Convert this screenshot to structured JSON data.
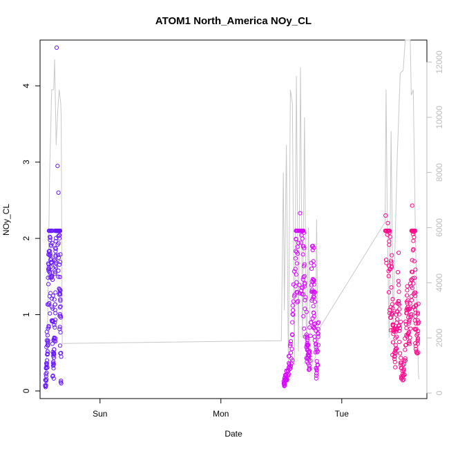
{
  "chart_data": {
    "type": "scatter",
    "title": "ATOM1 North_America NOy_CL",
    "xlabel": "Date",
    "ylabel": "NOy_CL",
    "x_ticks": [
      "Sun",
      "Mon",
      "Tue"
    ],
    "x_tick_hours": [
      24,
      48,
      72
    ],
    "xlim_hours": [
      12.1,
      88.9
    ],
    "ylim": [
      -0.1,
      4.6
    ],
    "y_ticks": [
      0,
      1,
      2,
      3,
      4
    ],
    "y2lim": [
      -200,
      12800
    ],
    "y2_ticks": [
      0,
      2000,
      4000,
      6000,
      8000,
      10000,
      12000
    ],
    "grid": false,
    "legend": "none",
    "colors": {
      "early": "#6a1aff",
      "middle": "#d60aff",
      "late": "#ff0a8c",
      "altitude_line": "#c8c8c8"
    },
    "series": [
      {
        "x_range_hours": [
          13.2,
          16.3
        ],
        "values_sample": [
          0.05,
          0.3,
          0.6,
          1.4,
          1.6,
          1.8,
          1.9,
          1.5,
          0.2,
          0.5,
          0.9,
          1.7,
          4.5,
          2.95,
          2.6,
          2.0,
          1.2,
          0.1
        ]
      },
      {
        "x_range_hours": [
          60.5,
          67.4
        ],
        "values_sample": [
          0.1,
          0.2,
          0.3,
          0.5,
          1.0,
          1.6,
          1.8,
          2.33,
          2.1,
          1.4,
          0.6,
          0.3,
          1.3,
          1.45,
          0.2,
          0.9
        ]
      },
      {
        "x_range_hours": [
          80.7,
          87.3
        ],
        "values_sample": [
          2.3,
          2.2,
          1.6,
          1.0,
          0.5,
          0.8,
          1.3,
          0.3,
          0.2,
          0.6,
          1.1,
          0.7,
          2.43,
          1.7,
          0.5,
          0.9
        ]
      }
    ],
    "altitude_line": [
      [
        13.2,
        300
      ],
      [
        13.6,
        2500
      ],
      [
        14.0,
        8000
      ],
      [
        14.4,
        11000
      ],
      [
        14.8,
        11000
      ],
      [
        15.0,
        12100
      ],
      [
        15.3,
        9000
      ],
      [
        15.6,
        10200
      ],
      [
        15.9,
        11000
      ],
      [
        16.2,
        10500
      ],
      [
        16.3,
        10000
      ],
      [
        16.5,
        1800
      ],
      [
        60.0,
        1900
      ],
      [
        60.4,
        8000
      ],
      [
        60.6,
        3000
      ],
      [
        61.0,
        9000
      ],
      [
        61.4,
        1000
      ],
      [
        61.8,
        11000
      ],
      [
        62.2,
        10500
      ],
      [
        62.6,
        1000
      ],
      [
        63.0,
        11500
      ],
      [
        63.4,
        1500
      ],
      [
        63.8,
        11800
      ],
      [
        64.2,
        2000
      ],
      [
        64.6,
        10000
      ],
      [
        65.0,
        1200
      ],
      [
        65.4,
        6000
      ],
      [
        65.8,
        900
      ],
      [
        66.4,
        1200
      ],
      [
        66.8,
        1300
      ],
      [
        67.0,
        6300
      ],
      [
        67.3,
        1500
      ],
      [
        67.4,
        2300
      ],
      [
        80.6,
        6200
      ],
      [
        80.8,
        11000
      ],
      [
        81.0,
        7000
      ],
      [
        81.4,
        2000
      ],
      [
        81.8,
        9500
      ],
      [
        82.2,
        2500
      ],
      [
        83.0,
        8500
      ],
      [
        83.6,
        11600
      ],
      [
        84.2,
        11700
      ],
      [
        84.6,
        12800
      ],
      [
        85.0,
        12800
      ],
      [
        85.6,
        12800
      ],
      [
        85.8,
        10800
      ],
      [
        86.2,
        11000
      ],
      [
        86.6,
        6000
      ],
      [
        87.2,
        800
      ],
      [
        87.3,
        500
      ]
    ]
  }
}
